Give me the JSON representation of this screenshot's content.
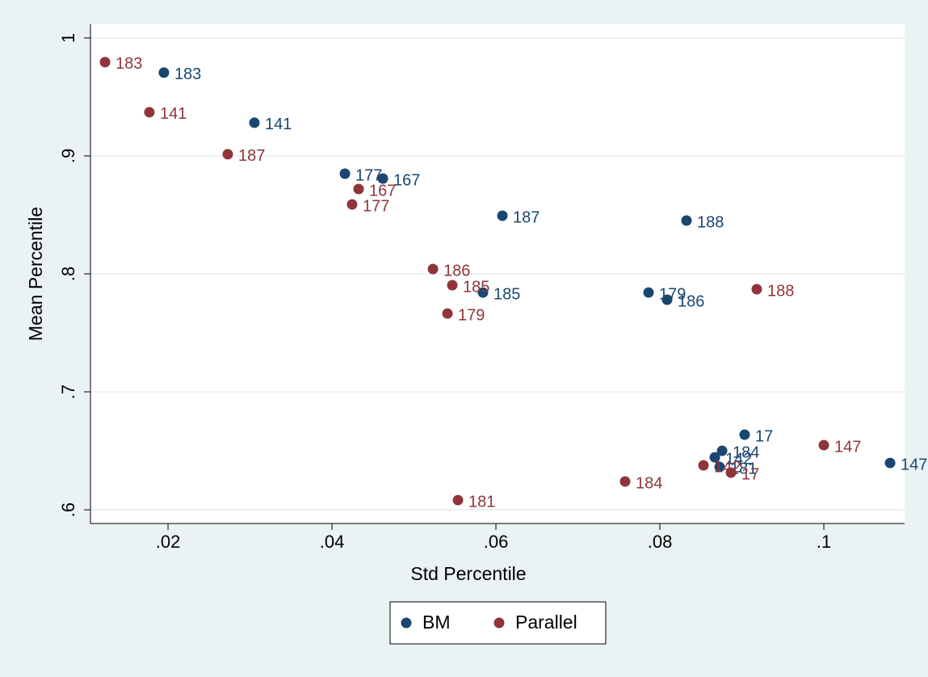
{
  "chart_data": {
    "type": "scatter",
    "xlabel": "Std Percentile",
    "ylabel": "Mean Percentile",
    "xlim": [
      0.01054,
      0.10985
    ],
    "ylim": [
      0.5884,
      1.0116
    ],
    "xticks": [
      {
        "value": 0.02,
        "label": ".02"
      },
      {
        "value": 0.04,
        "label": ".04"
      },
      {
        "value": 0.06,
        "label": ".06"
      },
      {
        "value": 0.08,
        "label": ".08"
      },
      {
        "value": 0.1,
        "label": ".1"
      }
    ],
    "yticks": [
      {
        "value": 0.6,
        "label": ".6"
      },
      {
        "value": 0.7,
        "label": ".7"
      },
      {
        "value": 0.8,
        "label": ".8"
      },
      {
        "value": 0.9,
        "label": ".9"
      },
      1
    ],
    "grid": "y",
    "legend": "bottom",
    "series": [
      {
        "name": "BM",
        "color": "#1a476f",
        "x": [
          0.0195,
          0.03054,
          0.04158,
          0.04621,
          0.06079,
          0.08325,
          0.07862,
          0.08089,
          0.05842,
          0.09034,
          0.08759,
          0.0867,
          0.08729,
          0.10808
        ],
        "values": [
          0.9706,
          0.9281,
          0.8849,
          0.8808,
          0.8493,
          0.8452,
          0.7842,
          0.7781,
          0.7842,
          0.6637,
          0.65,
          0.6445,
          0.6363,
          0.6397
        ],
        "point_labels": [
          "183",
          "141",
          "177",
          "167",
          "187",
          "188",
          "179",
          "186",
          "185",
          "17",
          "184",
          "142",
          "181",
          "147"
        ]
      },
      {
        "name": "Parallel",
        "color": "#90353b",
        "x": [
          0.01232,
          0.01773,
          0.02729,
          0.04325,
          0.04246,
          0.05232,
          0.05468,
          0.05409,
          0.09182,
          0.1,
          0.08532,
          0.08867,
          0.07576,
          0.05537
        ],
        "values": [
          0.9795,
          0.937,
          0.9014,
          0.8719,
          0.8589,
          0.8041,
          0.7904,
          0.7664,
          0.787,
          0.6548,
          0.6377,
          0.6315,
          0.624,
          0.6082
        ],
        "point_labels": [
          "183",
          "141",
          "187",
          "167",
          "177",
          "186",
          "185",
          "179",
          "188",
          "147",
          "142",
          "17",
          "184",
          "181"
        ]
      }
    ]
  }
}
